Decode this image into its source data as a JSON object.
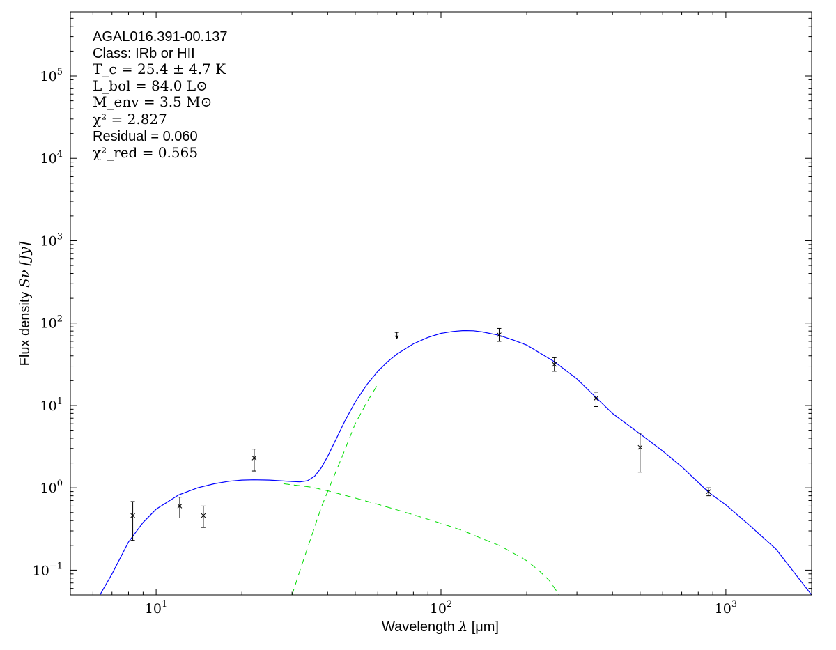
{
  "chart_data": {
    "type": "scatter",
    "x_scale": "log",
    "y_scale": "log",
    "xlim": [
      5,
      2000
    ],
    "ylim": [
      0.05,
      600000
    ],
    "xlabel_text": "Wavelength",
    "xlabel_symbol": "λ",
    "xlabel_unit": "[μm]",
    "ylabel_text": "Flux density",
    "ylabel_symbol": "Sν",
    "ylabel_unit": "[Jy]",
    "x_ticks": [
      {
        "value": 10,
        "base": "10",
        "exp": "1"
      },
      {
        "value": 100,
        "base": "10",
        "exp": "2"
      },
      {
        "value": 1000,
        "base": "10",
        "exp": "3"
      }
    ],
    "y_ticks": [
      {
        "value": 0.1,
        "base": "10",
        "exp": "−1"
      },
      {
        "value": 1,
        "base": "10",
        "exp": "0"
      },
      {
        "value": 10,
        "base": "10",
        "exp": "1"
      },
      {
        "value": 100,
        "base": "10",
        "exp": "2"
      },
      {
        "value": 1000,
        "base": "10",
        "exp": "3"
      },
      {
        "value": 10000,
        "base": "10",
        "exp": "4"
      },
      {
        "value": 100000,
        "base": "10",
        "exp": "5"
      }
    ],
    "annotations": {
      "source": "AGAL016.391-00.137",
      "class": "Class: IRb or HII",
      "tc": "T_c = 25.4 ± 4.7 K",
      "lbol": "L_bol = 84.0 L⊙",
      "menv": "M_env = 3.5 M⊙",
      "chi2": "χ² = 2.827",
      "residual": "Residual = 0.060",
      "chi2red": "χ²_red = 0.565"
    },
    "points": [
      {
        "x": 8.28,
        "y": 0.46,
        "ylow": 0.23,
        "yhigh": 0.68
      },
      {
        "x": 12.1,
        "y": 0.6,
        "ylow": 0.43,
        "yhigh": 0.77
      },
      {
        "x": 14.65,
        "y": 0.46,
        "ylow": 0.33,
        "yhigh": 0.6
      },
      {
        "x": 22.1,
        "y": 2.3,
        "ylow": 1.6,
        "yhigh": 2.95
      },
      {
        "x": 160,
        "y": 72,
        "ylow": 60,
        "yhigh": 86
      },
      {
        "x": 250,
        "y": 31.5,
        "ylow": 26,
        "yhigh": 38
      },
      {
        "x": 350,
        "y": 12.2,
        "ylow": 9.7,
        "yhigh": 14.5
      },
      {
        "x": 500,
        "y": 3.1,
        "ylow": 1.55,
        "yhigh": 4.6
      },
      {
        "x": 870,
        "y": 0.9,
        "ylow": 0.8,
        "yhigh": 1.0
      }
    ],
    "upper_limits": [
      {
        "x": 70,
        "y": 77,
        "y_end": 65
      }
    ],
    "fit_total": {
      "color": "#0000ff",
      "points": [
        [
          6.35,
          0.05
        ],
        [
          7,
          0.09
        ],
        [
          8,
          0.22
        ],
        [
          9,
          0.38
        ],
        [
          10,
          0.55
        ],
        [
          12,
          0.82
        ],
        [
          14,
          1.0
        ],
        [
          16,
          1.12
        ],
        [
          18,
          1.2
        ],
        [
          20,
          1.24
        ],
        [
          22,
          1.25
        ],
        [
          25,
          1.24
        ],
        [
          28,
          1.21
        ],
        [
          30,
          1.19
        ],
        [
          32,
          1.18
        ],
        [
          34,
          1.22
        ],
        [
          36,
          1.38
        ],
        [
          38,
          1.75
        ],
        [
          40,
          2.4
        ],
        [
          43,
          4.0
        ],
        [
          46,
          6.5
        ],
        [
          50,
          11
        ],
        [
          55,
          18
        ],
        [
          60,
          26
        ],
        [
          65,
          34
        ],
        [
          70,
          42
        ],
        [
          80,
          56
        ],
        [
          90,
          67
        ],
        [
          100,
          75
        ],
        [
          110,
          79
        ],
        [
          120,
          81
        ],
        [
          130,
          80.5
        ],
        [
          140,
          78
        ],
        [
          160,
          71
        ],
        [
          180,
          62
        ],
        [
          200,
          54
        ],
        [
          250,
          34
        ],
        [
          300,
          21
        ],
        [
          350,
          12.5
        ],
        [
          400,
          8
        ],
        [
          500,
          4.5
        ],
        [
          600,
          2.8
        ],
        [
          700,
          1.8
        ],
        [
          870,
          0.88
        ],
        [
          1000,
          0.62
        ],
        [
          1200,
          0.36
        ],
        [
          1500,
          0.18
        ],
        [
          2000,
          0.05
        ]
      ]
    },
    "fit_components": {
      "color": "#00dd00",
      "warm": [
        [
          28,
          1.12
        ],
        [
          35,
          1.02
        ],
        [
          40,
          0.92
        ],
        [
          50,
          0.75
        ],
        [
          60,
          0.63
        ],
        [
          70,
          0.54
        ],
        [
          80,
          0.47
        ],
        [
          100,
          0.37
        ],
        [
          120,
          0.3
        ],
        [
          140,
          0.24
        ],
        [
          160,
          0.2
        ],
        [
          180,
          0.16
        ],
        [
          200,
          0.13
        ],
        [
          220,
          0.1
        ],
        [
          240,
          0.075
        ],
        [
          260,
          0.05
        ]
      ],
      "cold": [
        [
          30,
          0.05
        ],
        [
          32,
          0.1
        ],
        [
          35,
          0.25
        ],
        [
          38,
          0.58
        ],
        [
          40,
          0.9
        ],
        [
          45,
          2.4
        ],
        [
          50,
          6
        ],
        [
          55,
          11
        ],
        [
          60,
          18
        ]
      ]
    }
  }
}
